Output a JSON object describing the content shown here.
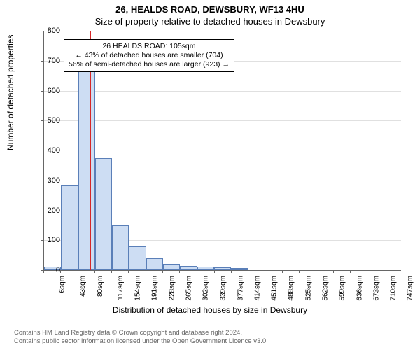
{
  "header": {
    "address": "26, HEALDS ROAD, DEWSBURY, WF13 4HU",
    "subtitle": "Size of property relative to detached houses in Dewsbury"
  },
  "axes": {
    "ylabel": "Number of detached properties",
    "xlabel": "Distribution of detached houses by size in Dewsbury",
    "ylim": [
      0,
      800
    ],
    "ytick_step": 100,
    "label_fontsize": 12,
    "tick_fontsize": 11
  },
  "chart": {
    "type": "histogram",
    "bar_fill": "#cdddf3",
    "bar_border": "#5a7fb8",
    "grid_color": "#e0e0e0",
    "axis_color": "#666666",
    "background_color": "#ffffff",
    "bin_start": 6,
    "bin_width": 37,
    "n_bins": 21,
    "xticks": [
      6,
      43,
      80,
      117,
      154,
      191,
      228,
      265,
      302,
      339,
      377,
      414,
      451,
      488,
      525,
      562,
      599,
      636,
      673,
      710,
      747
    ],
    "xtick_suffix": "sqm",
    "values": [
      12,
      285,
      700,
      375,
      150,
      80,
      40,
      20,
      15,
      12,
      10,
      8,
      0,
      0,
      0,
      0,
      0,
      0,
      0,
      0,
      0
    ]
  },
  "marker": {
    "value": 105,
    "color": "#d62728"
  },
  "annotation": {
    "line1": "26 HEALDS ROAD: 105sqm",
    "line2": "← 43% of detached houses are smaller (704)",
    "line3": "56% of semi-detached houses are larger (923) →",
    "border_color": "#000000",
    "bg": "#ffffff",
    "fontsize": 10.5
  },
  "footer": {
    "line1": "Contains HM Land Registry data © Crown copyright and database right 2024.",
    "line2": "Contains public sector information licensed under the Open Government Licence v3.0.",
    "color": "#666666",
    "fontsize": 9.5
  }
}
